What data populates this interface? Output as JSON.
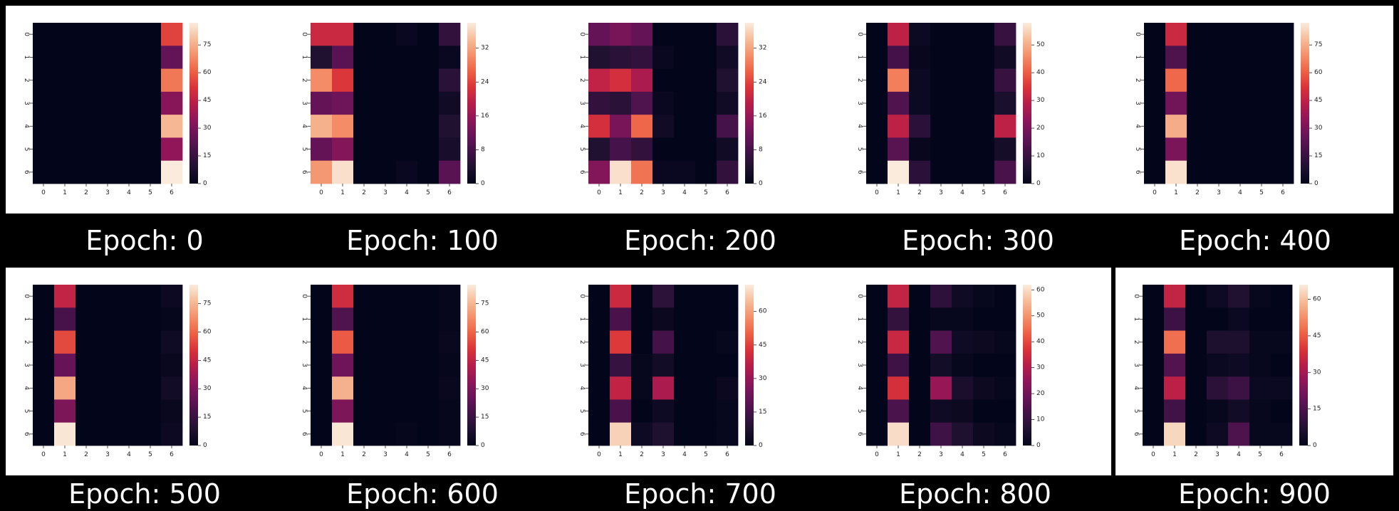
{
  "figure": {
    "background": "#000000",
    "panel_background": "#ffffff",
    "colormap": "rocket"
  },
  "chart_data": [
    {
      "type": "heatmap",
      "caption": "Epoch: 0",
      "x_ticks": [
        "0",
        "1",
        "2",
        "3",
        "4",
        "5",
        "6"
      ],
      "y_ticks": [
        "0",
        "1",
        "2",
        "3",
        "4",
        "5",
        "6"
      ],
      "colorbar": {
        "vmin": 0,
        "vmax": 87,
        "ticks": [
          0,
          15,
          30,
          45,
          60,
          75
        ]
      },
      "values": [
        [
          0,
          0,
          0,
          0,
          0,
          0,
          55
        ],
        [
          0,
          0,
          0,
          0,
          0,
          0,
          25
        ],
        [
          0,
          0,
          0,
          0,
          0,
          0,
          65
        ],
        [
          0,
          0,
          0,
          0,
          0,
          0,
          33
        ],
        [
          0,
          0,
          0,
          0,
          0,
          0,
          77
        ],
        [
          0,
          0,
          0,
          0,
          0,
          0,
          35
        ],
        [
          0,
          0,
          0,
          0,
          0,
          0,
          87
        ]
      ]
    },
    {
      "type": "heatmap",
      "caption": "Epoch: 100",
      "x_ticks": [
        "0",
        "1",
        "2",
        "3",
        "4",
        "5",
        "6"
      ],
      "y_ticks": [
        "0",
        "1",
        "2",
        "3",
        "4",
        "5",
        "6"
      ],
      "colorbar": {
        "vmin": 0,
        "vmax": 38,
        "ticks": [
          0,
          8,
          16,
          24,
          32
        ]
      },
      "values": [
        [
          21,
          21,
          0,
          0,
          1,
          0,
          6
        ],
        [
          4,
          10,
          0,
          0,
          0,
          0,
          1
        ],
        [
          30,
          23,
          0,
          0,
          0,
          0,
          5
        ],
        [
          11,
          12,
          0,
          0,
          0,
          0,
          2
        ],
        [
          33,
          30,
          0,
          0,
          0,
          0,
          4
        ],
        [
          11,
          14,
          0,
          0,
          0,
          0,
          3
        ],
        [
          31,
          37,
          0,
          0,
          1,
          0,
          10
        ]
      ]
    },
    {
      "type": "heatmap",
      "caption": "Epoch: 200",
      "x_ticks": [
        "0",
        "1",
        "2",
        "3",
        "4",
        "5",
        "6"
      ],
      "y_ticks": [
        "0",
        "1",
        "2",
        "3",
        "4",
        "5",
        "6"
      ],
      "colorbar": {
        "vmin": 0,
        "vmax": 38,
        "ticks": [
          0,
          8,
          16,
          24,
          32
        ]
      },
      "values": [
        [
          11,
          13,
          11,
          0,
          0,
          0,
          5
        ],
        [
          4,
          5,
          6,
          1,
          0,
          0,
          2
        ],
        [
          20,
          22,
          18,
          0,
          0,
          0,
          4
        ],
        [
          6,
          5,
          9,
          1,
          0,
          0,
          2
        ],
        [
          22,
          13,
          27,
          2,
          0,
          0,
          8
        ],
        [
          4,
          8,
          6,
          0,
          0,
          0,
          2
        ],
        [
          14,
          37,
          28,
          1,
          1,
          0,
          6
        ]
      ]
    },
    {
      "type": "heatmap",
      "caption": "Epoch: 300",
      "x_ticks": [
        "0",
        "1",
        "2",
        "3",
        "4",
        "5",
        "6"
      ],
      "y_ticks": [
        "0",
        "1",
        "2",
        "3",
        "4",
        "5",
        "6"
      ],
      "colorbar": {
        "vmin": 0,
        "vmax": 58,
        "ticks": [
          0,
          10,
          20,
          30,
          40,
          50
        ]
      },
      "values": [
        [
          0,
          30,
          2,
          0,
          0,
          0,
          10
        ],
        [
          0,
          12,
          1,
          0,
          0,
          0,
          3
        ],
        [
          0,
          44,
          2,
          0,
          0,
          0,
          10
        ],
        [
          0,
          14,
          2,
          0,
          0,
          0,
          5
        ],
        [
          0,
          30,
          8,
          0,
          0,
          0,
          30
        ],
        [
          0,
          15,
          1,
          0,
          0,
          0,
          4
        ],
        [
          0,
          58,
          8,
          0,
          0,
          0,
          13
        ]
      ]
    },
    {
      "type": "heatmap",
      "caption": "Epoch: 400",
      "x_ticks": [
        "0",
        "1",
        "2",
        "3",
        "4",
        "5",
        "6"
      ],
      "y_ticks": [
        "0",
        "1",
        "2",
        "3",
        "4",
        "5",
        "6"
      ],
      "colorbar": {
        "vmin": 0,
        "vmax": 87,
        "ticks": [
          0,
          15,
          30,
          45,
          60,
          75
        ]
      },
      "values": [
        [
          0,
          48,
          0,
          0,
          0,
          0,
          0
        ],
        [
          0,
          20,
          0,
          0,
          0,
          0,
          0
        ],
        [
          0,
          62,
          0,
          0,
          0,
          0,
          0
        ],
        [
          0,
          28,
          0,
          0,
          0,
          0,
          0
        ],
        [
          0,
          75,
          0,
          0,
          0,
          0,
          0
        ],
        [
          0,
          30,
          0,
          0,
          0,
          0,
          0
        ],
        [
          0,
          85,
          0,
          0,
          0,
          0,
          0
        ]
      ]
    },
    {
      "type": "heatmap",
      "caption": "Epoch: 500",
      "x_ticks": [
        "0",
        "1",
        "2",
        "3",
        "4",
        "5",
        "6"
      ],
      "y_ticks": [
        "0",
        "1",
        "2",
        "3",
        "4",
        "5",
        "6"
      ],
      "colorbar": {
        "vmin": 0,
        "vmax": 85,
        "ticks": [
          0,
          15,
          30,
          45,
          60,
          75
        ]
      },
      "values": [
        [
          0,
          45,
          0,
          0,
          0,
          0,
          3
        ],
        [
          0,
          18,
          0,
          0,
          0,
          0,
          1
        ],
        [
          0,
          55,
          0,
          0,
          0,
          0,
          4
        ],
        [
          0,
          25,
          0,
          0,
          0,
          0,
          2
        ],
        [
          0,
          72,
          0,
          0,
          0,
          0,
          5
        ],
        [
          0,
          30,
          0,
          0,
          0,
          0,
          2
        ],
        [
          0,
          84,
          0,
          0,
          0,
          0,
          3
        ]
      ]
    },
    {
      "type": "heatmap",
      "caption": "Epoch: 600",
      "x_ticks": [
        "0",
        "1",
        "2",
        "3",
        "4",
        "5",
        "6"
      ],
      "y_ticks": [
        "0",
        "1",
        "2",
        "3",
        "4",
        "5",
        "6"
      ],
      "colorbar": {
        "vmin": 0,
        "vmax": 85,
        "ticks": [
          0,
          15,
          30,
          45,
          60,
          75
        ]
      },
      "values": [
        [
          0,
          48,
          0,
          0,
          0,
          0,
          1
        ],
        [
          0,
          20,
          0,
          0,
          0,
          0,
          1
        ],
        [
          0,
          58,
          0,
          0,
          0,
          0,
          2
        ],
        [
          0,
          27,
          0,
          0,
          0,
          0,
          1
        ],
        [
          0,
          74,
          0,
          0,
          0,
          0,
          2
        ],
        [
          0,
          30,
          0,
          0,
          0,
          0,
          1
        ],
        [
          0,
          84,
          0,
          0,
          1,
          0,
          1
        ]
      ]
    },
    {
      "type": "heatmap",
      "caption": "Epoch: 700",
      "x_ticks": [
        "0",
        "1",
        "2",
        "3",
        "4",
        "5",
        "6"
      ],
      "y_ticks": [
        "0",
        "1",
        "2",
        "3",
        "4",
        "5",
        "6"
      ],
      "colorbar": {
        "vmin": 0,
        "vmax": 72,
        "ticks": [
          0,
          15,
          30,
          45,
          60
        ]
      },
      "values": [
        [
          0,
          40,
          0,
          10,
          0,
          0,
          0
        ],
        [
          0,
          16,
          0,
          2,
          0,
          0,
          0
        ],
        [
          0,
          44,
          0,
          15,
          0,
          0,
          1
        ],
        [
          0,
          12,
          1,
          4,
          0,
          0,
          0
        ],
        [
          0,
          38,
          1,
          34,
          0,
          0,
          2
        ],
        [
          0,
          16,
          0,
          3,
          0,
          0,
          1
        ],
        [
          0,
          68,
          3,
          7,
          0,
          0,
          1
        ]
      ]
    },
    {
      "type": "heatmap",
      "caption": "Epoch: 800",
      "x_ticks": [
        "0",
        "1",
        "2",
        "3",
        "4",
        "5",
        "6"
      ],
      "y_ticks": [
        "0",
        "1",
        "2",
        "3",
        "4",
        "5",
        "6"
      ],
      "colorbar": {
        "vmin": 0,
        "vmax": 62,
        "ticks": [
          0,
          10,
          20,
          30,
          40,
          50,
          60
        ]
      },
      "values": [
        [
          0,
          33,
          0,
          9,
          3,
          1,
          0
        ],
        [
          0,
          10,
          0,
          1,
          1,
          0,
          0
        ],
        [
          0,
          34,
          0,
          15,
          3,
          2,
          1
        ],
        [
          0,
          12,
          0,
          4,
          1,
          0,
          0
        ],
        [
          0,
          36,
          0,
          26,
          5,
          2,
          1
        ],
        [
          0,
          14,
          0,
          3,
          2,
          0,
          0
        ],
        [
          0,
          60,
          0,
          12,
          6,
          2,
          1
        ]
      ]
    },
    {
      "type": "heatmap",
      "caption": "Epoch: 900",
      "x_ticks": [
        "0",
        "1",
        "2",
        "3",
        "4",
        "5",
        "6"
      ],
      "y_ticks": [
        "0",
        "1",
        "2",
        "3",
        "4",
        "5",
        "6"
      ],
      "colorbar": {
        "vmin": 0,
        "vmax": 66,
        "ticks": [
          0,
          15,
          30,
          45,
          60
        ]
      },
      "values": [
        [
          0,
          35,
          0,
          3,
          7,
          1,
          0
        ],
        [
          0,
          12,
          0,
          0,
          2,
          0,
          0
        ],
        [
          0,
          48,
          0,
          6,
          6,
          1,
          1
        ],
        [
          0,
          16,
          0,
          2,
          3,
          1,
          0
        ],
        [
          0,
          34,
          0,
          9,
          12,
          2,
          2
        ],
        [
          0,
          13,
          0,
          1,
          4,
          1,
          0
        ],
        [
          0,
          63,
          0,
          3,
          15,
          1,
          1
        ]
      ]
    }
  ]
}
